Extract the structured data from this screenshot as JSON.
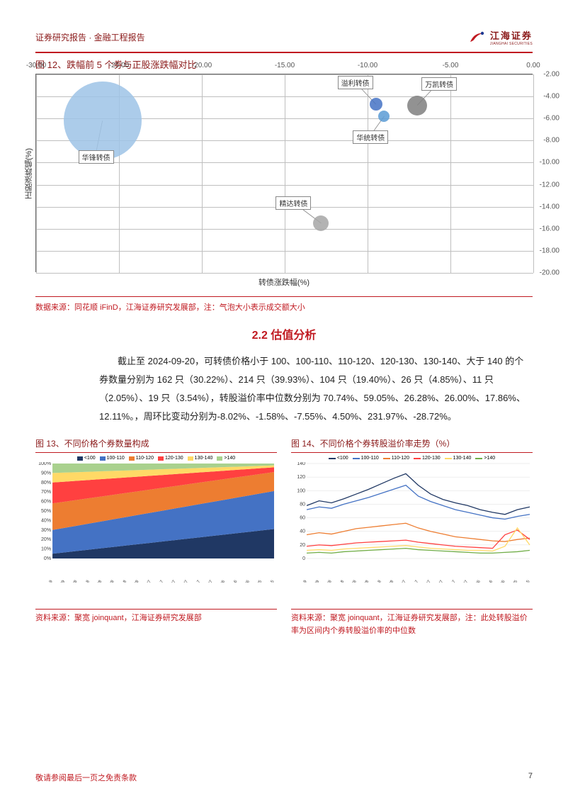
{
  "header": {
    "breadcrumb": "证券研究报告 · 金融工程报告",
    "logo_cn": "江海证券",
    "logo_en": "JIANGHAI SECURITIES"
  },
  "fig12": {
    "title": "图 12、跌幅前 5 个券与正股涨跌幅对比",
    "x_label": "转债涨跌幅(%)",
    "y_label": "正股涨跌幅(%)",
    "xlim": [
      -30,
      0
    ],
    "ylim": [
      -20,
      -2
    ],
    "x_ticks": [
      "-30.00",
      "-25.00",
      "-20.00",
      "-15.00",
      "-10.00",
      "-5.00",
      "0.00"
    ],
    "y_ticks": [
      "-2.00",
      "-4.00",
      "-6.00",
      "-8.00",
      "-10.00",
      "-12.00",
      "-14.00",
      "-16.00",
      "-18.00",
      "-20.00"
    ],
    "grid_color": "#bfbfbf",
    "bubbles": [
      {
        "label": "华锋转债",
        "x": -26.0,
        "y": -6.2,
        "r": 55,
        "color": "#9dc3e6"
      },
      {
        "label": "溢利转债",
        "x": -9.5,
        "y": -4.7,
        "r": 9,
        "color": "#4472c4"
      },
      {
        "label": "万凯转债",
        "x": -7.0,
        "y": -4.8,
        "r": 14,
        "color": "#7f7f7f"
      },
      {
        "label": "华统转债",
        "x": -9.0,
        "y": -5.8,
        "r": 8,
        "color": "#5b9bd5"
      },
      {
        "label": "精达转债",
        "x": -12.8,
        "y": -15.5,
        "r": 11,
        "color": "#a6a6a6"
      }
    ],
    "source": "数据来源：同花顺 iFinD，江海证券研究发展部，注：气泡大小表示成交额大小"
  },
  "section_2_2": {
    "title": "2.2 估值分析",
    "paragraph": "截止至 2024-09-20，可转债价格小于 100、100-110、110-120、120-130、130-140、大于 140 的个券数量分别为 162 只（30.22%）、214 只（39.93%）、104 只（19.40%）、26 只（4.85%）、11 只（2.05%）、19 只（3.54%），转股溢价率中位数分别为 70.74%、59.05%、26.28%、26.00%、17.86%、12.11%。，周环比变动分别为-8.02%、-1.58%、-7.55%、4.50%、231.97%、-28.72%。"
  },
  "fig13": {
    "title": "图 13、不同价格个券数量构成",
    "legend": [
      "<100",
      "100-110",
      "110-120",
      "120-130",
      "130-140",
      ">140"
    ],
    "legend_colors": [
      "#203864",
      "#4472c4",
      "#ed7d31",
      "#ff4040",
      "#ffd966",
      "#a9d18e"
    ],
    "y_ticks": [
      "0%",
      "10%",
      "20%",
      "30%",
      "40%",
      "50%",
      "60%",
      "70%",
      "80%",
      "90%",
      "100%"
    ],
    "x_ticks": [
      "2024/3/19",
      "2024/3/29",
      "2024/4/8",
      "2024/4/18",
      "2024/4/28",
      "2024/5/8",
      "2024/5/18",
      "2024/5/28",
      "2024/6/7",
      "2024/6/17",
      "2024/6/27",
      "2024/7/7",
      "2024/7/17",
      "2024/7/27",
      "2024/8/6",
      "2024/8/16",
      "2024/8/26",
      "2024/9/5",
      "2024/9/15"
    ],
    "background_color": "#ffffff",
    "source": "资料来源：聚宽 joinquant，江海证券研究发展部"
  },
  "fig14": {
    "title": "图 14、不同价格个券转股溢价率走势（%）",
    "legend": [
      "<100",
      "100-110",
      "110-120",
      "120-130",
      "130-140",
      ">140"
    ],
    "legend_colors": [
      "#203864",
      "#4472c4",
      "#ed7d31",
      "#ff4040",
      "#ffd966",
      "#70ad47"
    ],
    "y_ticks": [
      "0",
      "20",
      "40",
      "60",
      "80",
      "100",
      "120",
      "140"
    ],
    "ylim": [
      0,
      140
    ],
    "x_ticks": [
      "2024/3/19",
      "2024/3/29",
      "2024/4/8",
      "2024/4/18",
      "2024/4/28",
      "2024/5/8",
      "2024/5/18",
      "2024/5/28",
      "2024/6/7",
      "2024/6/17",
      "2024/6/27",
      "2024/7/7",
      "2024/7/17",
      "2024/7/27",
      "2024/8/6",
      "2024/8/16",
      "2024/8/26",
      "2024/9/5",
      "2024/9/15"
    ],
    "series": {
      "lt100": [
        78,
        85,
        82,
        88,
        95,
        102,
        110,
        118,
        125,
        108,
        95,
        87,
        82,
        78,
        72,
        68,
        65,
        72,
        76
      ],
      "100-110": [
        72,
        76,
        74,
        80,
        85,
        90,
        96,
        102,
        108,
        92,
        84,
        78,
        72,
        68,
        64,
        60,
        58,
        62,
        65
      ],
      "110-120": [
        35,
        38,
        36,
        40,
        44,
        46,
        48,
        50,
        52,
        45,
        40,
        36,
        32,
        30,
        28,
        26,
        25,
        28,
        30
      ],
      "120-130": [
        18,
        20,
        19,
        21,
        23,
        24,
        25,
        26,
        27,
        24,
        22,
        20,
        18,
        17,
        16,
        15,
        35,
        42,
        28
      ],
      "130-140": [
        12,
        13,
        12,
        14,
        15,
        16,
        17,
        18,
        19,
        17,
        15,
        14,
        13,
        12,
        12,
        11,
        18,
        45,
        20
      ],
      "gt140": [
        8,
        9,
        8,
        10,
        11,
        12,
        13,
        14,
        15,
        13,
        12,
        11,
        10,
        9,
        8,
        8,
        9,
        10,
        12
      ]
    },
    "source": "资料来源：聚宽 joinquant，江海证券研究发展部，注：此处转股溢价率为区间内个券转股溢价率的中位数"
  },
  "footer": {
    "disclaimer": "敬请参阅最后一页之免责条款",
    "page": "7"
  }
}
